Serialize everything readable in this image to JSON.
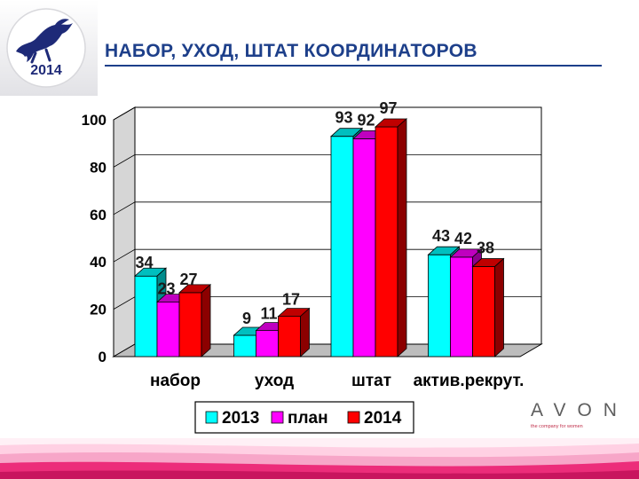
{
  "header": {
    "title": "НАБОР, УХОД, ШТАТ КООРДИНАТОРОВ",
    "logo_year": "2014"
  },
  "brand": {
    "name": "AVON",
    "tagline": "the company for women"
  },
  "colors": {
    "title": "#1d3f8a",
    "series_2013": "#00ffff",
    "series_plan": "#ff00ff",
    "series_2014": "#ff0000",
    "band_top": "#ffd0e3",
    "band_bottom": "#ec2d7a"
  },
  "chart_data": {
    "type": "bar",
    "categories": [
      "набор",
      "уход",
      "штат",
      "актив.рекрут."
    ],
    "series": [
      {
        "name": "2013",
        "values": [
          34,
          9,
          93,
          43
        ]
      },
      {
        "name": "план",
        "values": [
          23,
          11,
          92,
          42
        ]
      },
      {
        "name": "2014",
        "values": [
          27,
          17,
          97,
          38
        ]
      }
    ],
    "y_ticks": [
      0,
      20,
      40,
      60,
      80,
      100
    ],
    "ylim": [
      0,
      100
    ],
    "grid": true,
    "legend_position": "bottom",
    "style": "3d"
  }
}
